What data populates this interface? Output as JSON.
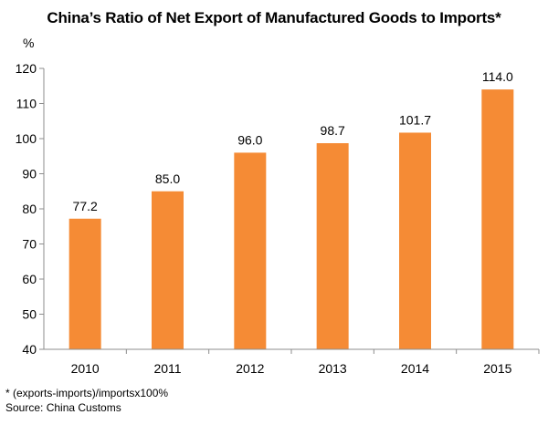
{
  "title": "China’s Ratio of Net Export of Manufactured Goods to Imports*",
  "unit_label": "%",
  "chart_data": {
    "type": "bar",
    "title": "China’s Ratio of Net Export of Manufactured Goods to Imports*",
    "categories": [
      "2010",
      "2011",
      "2012",
      "2013",
      "2014",
      "2015"
    ],
    "values": [
      77.2,
      85.0,
      96.0,
      98.7,
      101.7,
      114.0
    ],
    "value_labels": [
      "77.2",
      "85.0",
      "96.0",
      "98.7",
      "101.7",
      "114.0"
    ],
    "ylabel": "%",
    "ylim": [
      40,
      120
    ],
    "yticks": [
      40,
      50,
      60,
      70,
      80,
      90,
      100,
      110,
      120
    ],
    "grid": false,
    "bar_color": "#F58B35"
  },
  "footnote": {
    "note": "* (exports-imports)/importsx100%",
    "source": "Source: China Customs"
  }
}
